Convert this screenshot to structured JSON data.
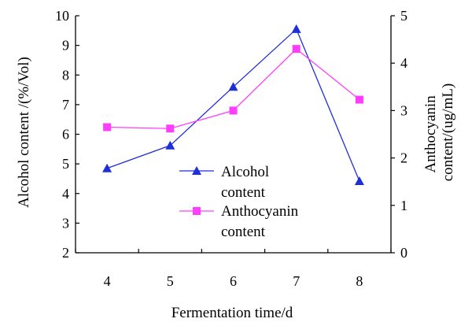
{
  "chart_data": {
    "type": "line",
    "xlabel": "Fermentation time/d",
    "ylabel": "Alcohol content /(%/Vol)",
    "ylabel_right_lines": [
      "Anthocyanin",
      "content/(ug/mL)"
    ],
    "x": [
      4,
      5,
      6,
      7,
      8
    ],
    "xlim": [
      3.5,
      8.5
    ],
    "ylim": [
      2,
      10
    ],
    "ylim_right": [
      0,
      5
    ],
    "y_ticks": [
      2,
      3,
      4,
      5,
      6,
      7,
      8,
      9,
      10
    ],
    "y_right_ticks": [
      0,
      1,
      2,
      3,
      4,
      5
    ],
    "grid": false,
    "legend_position": "center",
    "series": [
      {
        "name_lines": [
          "Alcohol",
          "content"
        ],
        "axis": "left",
        "marker": "triangle",
        "color": "#1f2fd6",
        "values": [
          4.85,
          5.62,
          7.6,
          9.55,
          4.42
        ]
      },
      {
        "name_lines": [
          "Anthocyanin",
          "content"
        ],
        "axis": "right",
        "marker": "square",
        "color": "#ff3dff",
        "values": [
          2.65,
          2.62,
          3.0,
          4.3,
          3.23
        ]
      }
    ]
  }
}
